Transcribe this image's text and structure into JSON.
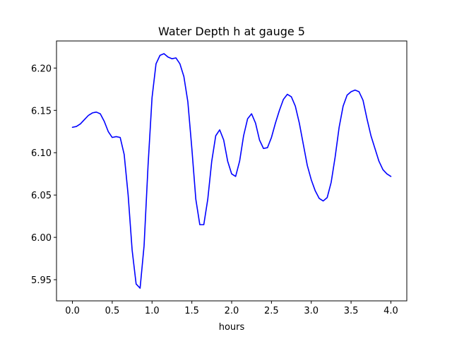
{
  "chart_data": {
    "type": "line",
    "title": "Water Depth h at gauge 5",
    "xlabel": "hours",
    "ylabel": "",
    "xlim": [
      -0.2,
      4.2
    ],
    "ylim": [
      5.925,
      6.232
    ],
    "xticks": [
      0.0,
      0.5,
      1.0,
      1.5,
      2.0,
      2.5,
      3.0,
      3.5,
      4.0
    ],
    "xtick_labels": [
      "0.0",
      "0.5",
      "1.0",
      "1.5",
      "2.0",
      "2.5",
      "3.0",
      "3.5",
      "4.0"
    ],
    "yticks": [
      5.95,
      6.0,
      6.05,
      6.1,
      6.15,
      6.2
    ],
    "ytick_labels": [
      "5.95",
      "6.00",
      "6.05",
      "6.10",
      "6.15",
      "6.20"
    ],
    "grid": false,
    "legend": "none",
    "series": [
      {
        "color": "#0000ff",
        "x": [
          0.0,
          0.05,
          0.1,
          0.15,
          0.2,
          0.25,
          0.3,
          0.35,
          0.4,
          0.45,
          0.5,
          0.55,
          0.6,
          0.65,
          0.7,
          0.75,
          0.8,
          0.85,
          0.9,
          0.95,
          1.0,
          1.05,
          1.1,
          1.15,
          1.2,
          1.25,
          1.3,
          1.35,
          1.4,
          1.45,
          1.5,
          1.55,
          1.6,
          1.65,
          1.7,
          1.75,
          1.8,
          1.85,
          1.9,
          1.95,
          2.0,
          2.05,
          2.1,
          2.15,
          2.2,
          2.25,
          2.3,
          2.35,
          2.4,
          2.45,
          2.5,
          2.55,
          2.6,
          2.65,
          2.7,
          2.75,
          2.8,
          2.85,
          2.9,
          2.95,
          3.0,
          3.05,
          3.1,
          3.15,
          3.2,
          3.25,
          3.3,
          3.35,
          3.4,
          3.45,
          3.5,
          3.55,
          3.6,
          3.65,
          3.7,
          3.75,
          3.8,
          3.85,
          3.9,
          3.95,
          4.0
        ],
        "y": [
          6.13,
          6.131,
          6.134,
          6.139,
          6.144,
          6.147,
          6.148,
          6.146,
          6.137,
          6.125,
          6.118,
          6.119,
          6.118,
          6.098,
          6.05,
          5.985,
          5.945,
          5.94,
          5.99,
          6.085,
          6.165,
          6.205,
          6.215,
          6.217,
          6.213,
          6.211,
          6.212,
          6.205,
          6.19,
          6.16,
          6.105,
          6.045,
          6.015,
          6.015,
          6.045,
          6.09,
          6.12,
          6.127,
          6.115,
          6.09,
          6.075,
          6.072,
          6.09,
          6.12,
          6.14,
          6.146,
          6.135,
          6.115,
          6.105,
          6.106,
          6.118,
          6.135,
          6.15,
          6.163,
          6.169,
          6.166,
          6.155,
          6.135,
          6.11,
          6.085,
          6.068,
          6.055,
          6.046,
          6.043,
          6.047,
          6.065,
          6.095,
          6.13,
          6.155,
          6.168,
          6.172,
          6.174,
          6.172,
          6.162,
          6.14,
          6.12,
          6.105,
          6.09,
          6.08,
          6.075,
          6.072
        ]
      }
    ]
  }
}
